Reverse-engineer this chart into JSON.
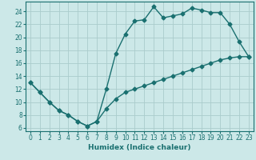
{
  "title": "",
  "xlabel": "Humidex (Indice chaleur)",
  "background_color": "#cce8e8",
  "grid_color": "#aacccc",
  "line_color": "#1a7070",
  "xlim": [
    -0.5,
    23.5
  ],
  "ylim": [
    5.5,
    25.5
  ],
  "xticks": [
    0,
    1,
    2,
    3,
    4,
    5,
    6,
    7,
    8,
    9,
    10,
    11,
    12,
    13,
    14,
    15,
    16,
    17,
    18,
    19,
    20,
    21,
    22,
    23
  ],
  "yticks": [
    6,
    8,
    10,
    12,
    14,
    16,
    18,
    20,
    22,
    24
  ],
  "series1_x": [
    0,
    1,
    2,
    3,
    4,
    5,
    6,
    7,
    8,
    9,
    10,
    11,
    12,
    13,
    14,
    15,
    16,
    17,
    18,
    19,
    20,
    21,
    22,
    23
  ],
  "series1_y": [
    13,
    11.5,
    10,
    8.7,
    8.0,
    7.0,
    6.3,
    7.0,
    12.0,
    17.5,
    20.5,
    22.5,
    22.7,
    24.7,
    23.0,
    23.3,
    23.6,
    24.5,
    24.2,
    23.8,
    23.8,
    22.0,
    19.3,
    17.0
  ],
  "series2_x": [
    0,
    1,
    2,
    3,
    4,
    5,
    6,
    7,
    8,
    9,
    10,
    11,
    12,
    13,
    14,
    15,
    16,
    17,
    18,
    19,
    20,
    21,
    22,
    23
  ],
  "series2_y": [
    13,
    11.5,
    10,
    8.7,
    8.0,
    7.0,
    6.3,
    7.0,
    9.0,
    10.5,
    11.5,
    12.0,
    12.5,
    13.0,
    13.5,
    14.0,
    14.5,
    15.0,
    15.5,
    16.0,
    16.5,
    16.8,
    17.0,
    17.0
  ],
  "marker": "D",
  "markersize": 2.5,
  "linewidth": 1.0,
  "tick_fontsize": 5.5,
  "xlabel_fontsize": 6.5
}
